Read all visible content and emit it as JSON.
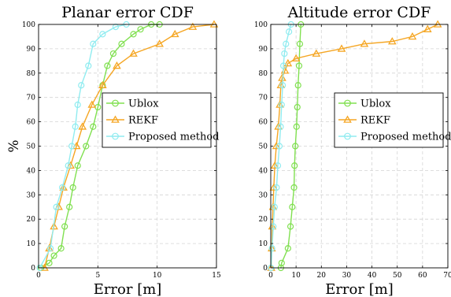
{
  "chart_data": [
    {
      "type": "line",
      "title": "Planar error CDF",
      "xlabel": "Error [m]",
      "ylabel": "%",
      "xlim": [
        0,
        15
      ],
      "ylim": [
        0,
        100
      ],
      "xticks": [
        0,
        5,
        10,
        15
      ],
      "yticks": [
        0,
        10,
        20,
        30,
        40,
        50,
        60,
        70,
        80,
        90,
        100
      ],
      "grid": true,
      "legend_position": "center-right",
      "series": [
        {
          "name": "Ublox",
          "color": "#80e050",
          "marker": "circle",
          "x": [
            0.2,
            0.9,
            1.3,
            1.9,
            2.2,
            2.6,
            2.9,
            3.3,
            4.0,
            4.6,
            5.0,
            5.4,
            5.8,
            6.3,
            7.0,
            8.0,
            8.6,
            9.5,
            10.2
          ],
          "y": [
            0,
            2,
            5,
            8,
            17,
            25,
            33,
            42,
            50,
            58,
            66,
            75,
            83,
            88,
            92,
            96,
            98,
            100,
            100
          ]
        },
        {
          "name": "REKF",
          "color": "#f5a623",
          "marker": "triangle",
          "x": [
            0.5,
            0.9,
            1.3,
            1.7,
            2.1,
            2.7,
            3.2,
            3.7,
            4.5,
            5.4,
            6.6,
            8.0,
            10.2,
            11.5,
            13.0,
            14.8
          ],
          "y": [
            0,
            8,
            17,
            25,
            33,
            42,
            50,
            58,
            67,
            75,
            83,
            88,
            92,
            96,
            99,
            100
          ]
        },
        {
          "name": "Proposed method",
          "color": "#90ecf0",
          "marker": "circle",
          "x": [
            0.1,
            1.0,
            1.5,
            2.0,
            2.5,
            2.8,
            3.1,
            3.3,
            3.6,
            4.2,
            4.6,
            5.4,
            6.5,
            7.4
          ],
          "y": [
            0,
            8,
            25,
            33,
            42,
            50,
            58,
            67,
            75,
            83,
            92,
            96,
            99,
            100
          ]
        }
      ]
    },
    {
      "type": "line",
      "title": "Altitude error CDF",
      "xlabel": "Error [m]",
      "ylabel": "",
      "xlim": [
        0,
        70
      ],
      "ylim": [
        0,
        100
      ],
      "xticks": [
        0,
        10,
        20,
        30,
        40,
        50,
        60,
        70
      ],
      "yticks": [
        0,
        10,
        20,
        30,
        40,
        50,
        60,
        70,
        80,
        90,
        100
      ],
      "grid": true,
      "legend_position": "center-right",
      "series": [
        {
          "name": "Ublox",
          "color": "#80e050",
          "marker": "circle",
          "x": [
            4.0,
            4.3,
            6.8,
            7.8,
            8.5,
            9.2,
            9.4,
            9.7,
            10.2,
            10.5,
            10.8,
            11.2,
            11.5,
            11.9
          ],
          "y": [
            0,
            2,
            8,
            17,
            25,
            33,
            42,
            50,
            58,
            66,
            75,
            83,
            92,
            100
          ]
        },
        {
          "name": "REKF",
          "color": "#f5a623",
          "marker": "triangle",
          "x": [
            0.2,
            0.4,
            0.6,
            0.9,
            1.2,
            1.6,
            2.2,
            3.0,
            3.6,
            4.0,
            4.5,
            5.6,
            6.8,
            10.0,
            18.0,
            28.0,
            37.0,
            48.0,
            56.0,
            62.0,
            66.0
          ],
          "y": [
            0,
            8,
            17,
            25,
            33,
            42,
            50,
            58,
            67,
            75,
            78,
            81,
            84,
            86,
            88,
            90,
            92,
            93,
            95,
            98,
            100
          ]
        },
        {
          "name": "Proposed method",
          "color": "#90ecf0",
          "marker": "circle",
          "x": [
            0.1,
            0.5,
            1.0,
            1.5,
            2.3,
            2.8,
            3.4,
            3.9,
            4.3,
            4.7,
            5.0,
            5.4,
            6.0,
            7.2,
            8.0
          ],
          "y": [
            0,
            8,
            17,
            25,
            33,
            42,
            50,
            58,
            67,
            75,
            83,
            88,
            92,
            97,
            100
          ]
        }
      ]
    }
  ]
}
